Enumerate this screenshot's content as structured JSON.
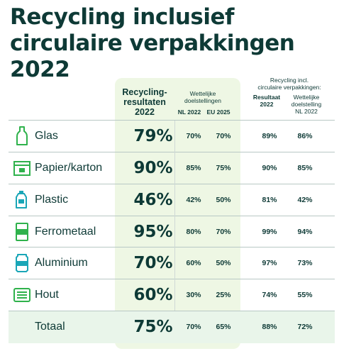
{
  "title": {
    "line1": "Recycling inclusief",
    "line2": "circulaire verpakkingen",
    "line3": "2022"
  },
  "headers": {
    "results_line1": "Recycling-",
    "results_line2": "resultaten",
    "results_line3": "2022",
    "targets_line1": "Wettelijke",
    "targets_line2": "doelstellingen",
    "nl2022": "NL 2022",
    "eu2025": "EU 2025",
    "circ_line1": "Recycling incl.",
    "circ_line2": "circulaire verpakkingen:",
    "result_line1": "Resultaat",
    "result_line2": "2022",
    "target_line1": "Wettelijke",
    "target_line2": "doelstelling",
    "target_line3": "NL 2022"
  },
  "colors": {
    "dark": "#0e3a36",
    "green": "#2fb24c",
    "teal": "#1aa6b7",
    "column_bg": "#eef7e4",
    "total_bg": "#e9f5ea"
  },
  "chart_data": {
    "type": "table",
    "title": "Recycling inclusief circulaire verpakkingen 2022",
    "columns": [
      "Recycling-resultaten 2022",
      "Wettelijke doelstellingen NL 2022",
      "Wettelijke doelstellingen EU 2025",
      "Recycling incl. circulaire verpakkingen: Resultaat 2022",
      "Recycling incl. circulaire verpakkingen: Wettelijke doelstelling NL 2022"
    ],
    "rows": [
      {
        "name": "Glas",
        "icon": "bottle-icon",
        "result": "79%",
        "nl2022": "70%",
        "eu2025": "70%",
        "circ_result": "89%",
        "circ_target": "86%"
      },
      {
        "name": "Papier/karton",
        "icon": "cardboard-box-icon",
        "result": "90%",
        "nl2022": "85%",
        "eu2025": "75%",
        "circ_result": "90%",
        "circ_target": "85%"
      },
      {
        "name": "Plastic",
        "icon": "plastic-bottle-icon",
        "result": "46%",
        "nl2022": "42%",
        "eu2025": "50%",
        "circ_result": "81%",
        "circ_target": "42%"
      },
      {
        "name": "Ferrometaal",
        "icon": "tin-can-icon",
        "result": "95%",
        "nl2022": "80%",
        "eu2025": "70%",
        "circ_result": "99%",
        "circ_target": "94%"
      },
      {
        "name": "Aluminium",
        "icon": "aluminium-can-icon",
        "result": "70%",
        "nl2022": "60%",
        "eu2025": "50%",
        "circ_result": "97%",
        "circ_target": "73%"
      },
      {
        "name": "Hout",
        "icon": "wooden-pallet-icon",
        "result": "60%",
        "nl2022": "30%",
        "eu2025": "25%",
        "circ_result": "74%",
        "circ_target": "55%"
      },
      {
        "name": "Totaal",
        "icon": "",
        "result": "75%",
        "nl2022": "70%",
        "eu2025": "65%",
        "circ_result": "88%",
        "circ_target": "72%"
      }
    ]
  }
}
